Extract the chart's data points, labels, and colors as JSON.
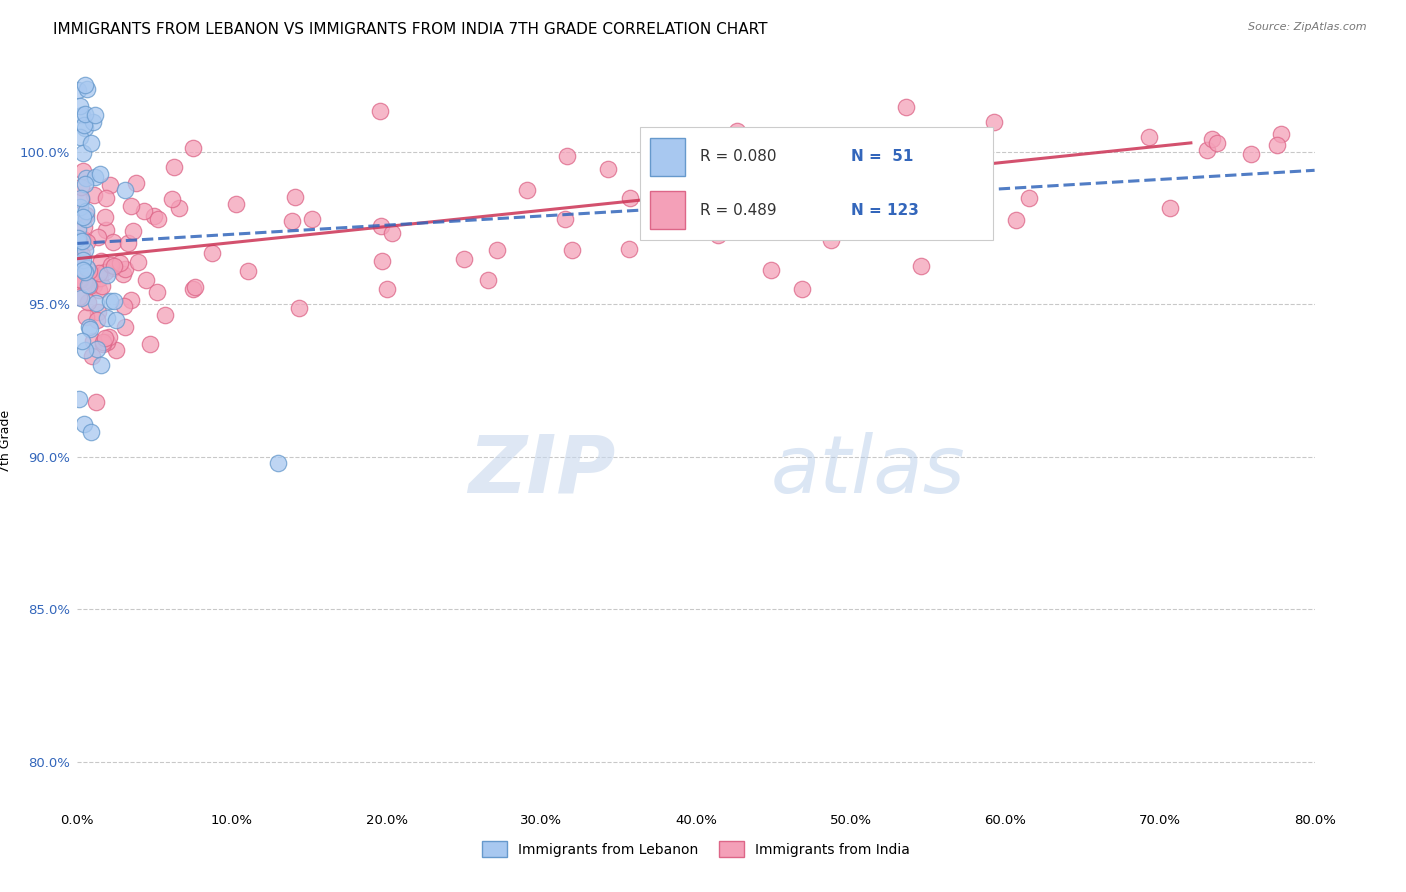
{
  "title": "IMMIGRANTS FROM LEBANON VS IMMIGRANTS FROM INDIA 7TH GRADE CORRELATION CHART",
  "source": "Source: ZipAtlas.com",
  "ylabel": "7th Grade",
  "x_tick_labels": [
    "0.0%",
    "10.0%",
    "20.0%",
    "30.0%",
    "40.0%",
    "50.0%",
    "60.0%",
    "70.0%",
    "80.0%"
  ],
  "x_tick_vals": [
    0.0,
    10.0,
    20.0,
    30.0,
    40.0,
    50.0,
    60.0,
    70.0,
    80.0
  ],
  "y_tick_labels": [
    "80.0%",
    "85.0%",
    "90.0%",
    "95.0%",
    "100.0%"
  ],
  "y_tick_vals": [
    80.0,
    85.0,
    90.0,
    95.0,
    100.0
  ],
  "xlim": [
    0.0,
    80.0
  ],
  "ylim": [
    78.5,
    102.5
  ],
  "lebanon_color": "#A8C8F0",
  "india_color": "#F4A0B8",
  "lebanon_edge": "#6699CC",
  "india_edge": "#DD6688",
  "trend_lebanon_color": "#3366BB",
  "trend_india_color": "#CC3355",
  "legend_r_lebanon": "R = 0.080",
  "legend_n_lebanon": "N =  51",
  "legend_r_india": "R = 0.489",
  "legend_n_india": "N = 123",
  "legend_label_lebanon": "Immigrants from Lebanon",
  "legend_label_india": "Immigrants from India",
  "watermark_zip": "ZIP",
  "watermark_atlas": "atlas",
  "title_fontsize": 11,
  "axis_label_fontsize": 9,
  "tick_fontsize": 9.5,
  "r_text_color": "#333333",
  "n_text_color": "#3366BB"
}
